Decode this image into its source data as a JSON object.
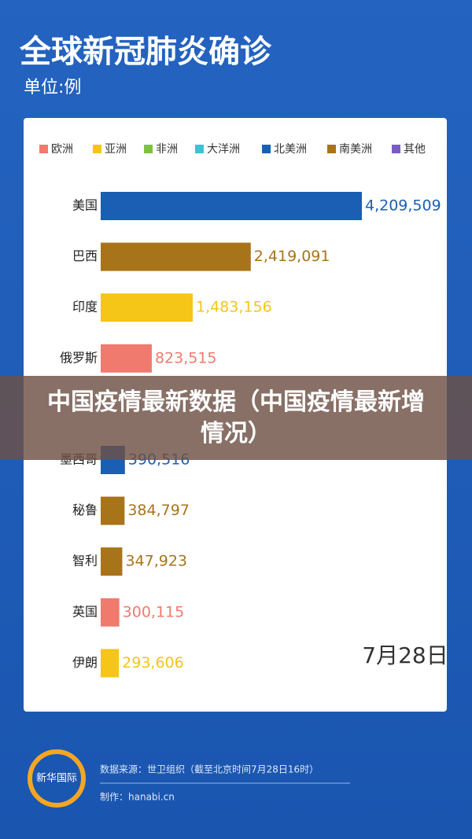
{
  "chart_data": {
    "type": "bar",
    "orientation": "horizontal",
    "title": "全球新冠肺炎确诊",
    "subtitle": "单位:例",
    "legend": [
      {
        "name": "欧洲",
        "color": "#f07a6e"
      },
      {
        "name": "亚洲",
        "color": "#f5c518"
      },
      {
        "name": "非洲",
        "color": "#7cc243"
      },
      {
        "name": "大洋洲",
        "color": "#3ec1d3"
      },
      {
        "name": "北美洲",
        "color": "#1a5fb4"
      },
      {
        "name": "南美洲",
        "color": "#a8741a"
      },
      {
        "name": "其他",
        "color": "#7b5cc4"
      }
    ],
    "categories": [
      "美国",
      "巴西",
      "印度",
      "俄罗斯",
      "墨西哥",
      "秘鲁",
      "智利",
      "英国",
      "伊朗"
    ],
    "values": [
      4209509,
      2419091,
      1483156,
      823515,
      390516,
      384797,
      347923,
      300115,
      293606
    ],
    "value_labels": [
      "4,209,509",
      "2,419,091",
      "1,483,156",
      "823,515",
      "390,516",
      "384,797",
      "347,923",
      "300,115",
      "293,606"
    ],
    "colors": [
      "#1a5fb4",
      "#a8741a",
      "#f5c518",
      "#f07a6e",
      "#1a5fb4",
      "#a8741a",
      "#a8741a",
      "#f07a6e",
      "#f5c518"
    ],
    "annotation": "7月28日"
  },
  "banner": {
    "title": "中国疫情最新数据（中国疫情最新增情况）"
  },
  "footer": {
    "logo": "新华国际",
    "source": "数据来源：世卫组织（截至北京时间7月28日16时）",
    "credit": "制作：hanabi.cn"
  }
}
